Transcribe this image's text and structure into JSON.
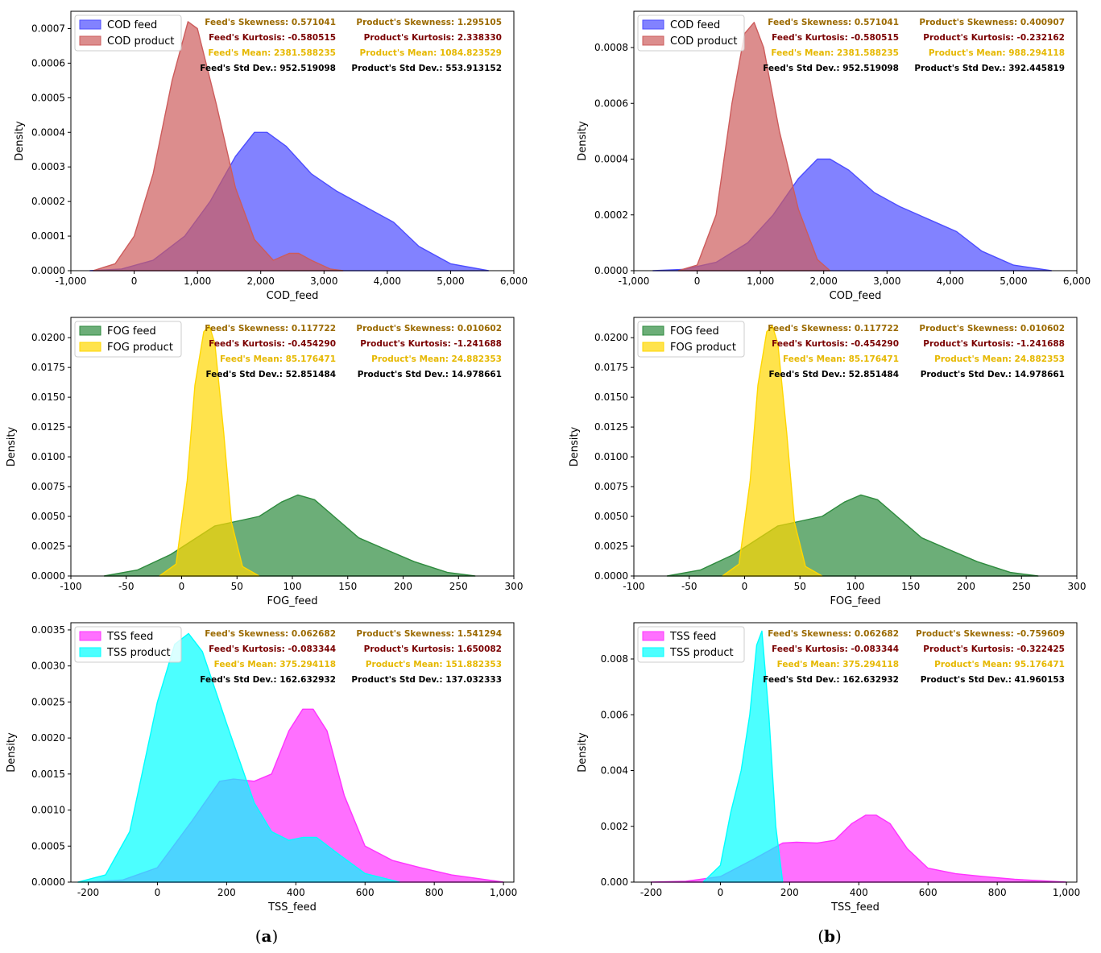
{
  "figure_labels": {
    "a_open": "(",
    "a_letter": "a",
    "a_close": ")",
    "b_open": "(",
    "b_letter": "b",
    "b_close": ")"
  },
  "colors": {
    "cod_feed": "#4d4dff",
    "cod_product": "#cd5c5c",
    "fog_feed": "#2e8b3e",
    "fog_product": "#ffd700",
    "tss_feed": "#ff33ff",
    "tss_product": "#00ffff",
    "stat_skew": "#9b6a00",
    "stat_kurt": "#7a0000",
    "stat_mean": "#e6b800",
    "stat_std": "#000000"
  },
  "chart_data": [
    {
      "id": "cod_a",
      "type": "area",
      "xlabel": "COD_feed",
      "ylabel": "Density",
      "xlim": [
        -1000,
        6000
      ],
      "ylim": [
        0,
        0.00075
      ],
      "xticks": [
        -1000,
        0,
        1000,
        2000,
        3000,
        4000,
        5000,
        6000
      ],
      "xticklabels": [
        "-1,000",
        "0",
        "1,000",
        "2,000",
        "3,000",
        "4,000",
        "5,000",
        "6,000"
      ],
      "yticks": [
        0,
        0.0001,
        0.0002,
        0.0003,
        0.0004,
        0.0005,
        0.0006,
        0.0007
      ],
      "yticklabels": [
        "0.0000",
        "0.0001",
        "0.0002",
        "0.0003",
        "0.0004",
        "0.0005",
        "0.0006",
        "0.0007"
      ],
      "legend": [
        "COD feed",
        "COD product"
      ],
      "stats": [
        "Feed's Skewness: 0.571041",
        "Product's Skewness: 1.295105",
        "Feed's Kurtosis: -0.580515",
        "Product's Kurtosis: 2.338330",
        "Feed's Mean: 2381.588235",
        "Product's Mean: 1084.823529",
        "Feed's Std Dev.: 952.519098",
        "Product's Std Dev.: 553.913152"
      ],
      "series": [
        {
          "name": "COD feed",
          "color": "cod_feed",
          "x": [
            -700,
            -200,
            300,
            800,
            1200,
            1600,
            1900,
            2100,
            2400,
            2800,
            3200,
            3700,
            4100,
            4500,
            5000,
            5600
          ],
          "y": [
            0,
            5e-06,
            3e-05,
            0.0001,
            0.0002,
            0.00033,
            0.0004,
            0.0004,
            0.00036,
            0.00028,
            0.00023,
            0.00018,
            0.00014,
            7e-05,
            2e-05,
            0
          ]
        },
        {
          "name": "COD product",
          "color": "cod_product",
          "x": [
            -650,
            -300,
            0,
            300,
            600,
            850,
            1000,
            1300,
            1600,
            1900,
            2200,
            2450,
            2600,
            2800,
            3100,
            3300
          ],
          "y": [
            0,
            2e-05,
            0.0001,
            0.00028,
            0.00055,
            0.00072,
            0.0007,
            0.00048,
            0.00024,
            9e-05,
            3e-05,
            5e-05,
            5e-05,
            3e-05,
            5e-06,
            0
          ]
        }
      ]
    },
    {
      "id": "cod_b",
      "type": "area",
      "xlabel": "COD_feed",
      "ylabel": "Density",
      "xlim": [
        -1000,
        6000
      ],
      "ylim": [
        0,
        0.00093
      ],
      "xticks": [
        -1000,
        0,
        1000,
        2000,
        3000,
        4000,
        5000,
        6000
      ],
      "xticklabels": [
        "-1,000",
        "0",
        "1,000",
        "2,000",
        "3,000",
        "4,000",
        "5,000",
        "6,000"
      ],
      "yticks": [
        0,
        0.0002,
        0.0004,
        0.0006,
        0.0008
      ],
      "yticklabels": [
        "0.0000",
        "0.0002",
        "0.0004",
        "0.0006",
        "0.0008"
      ],
      "legend": [
        "COD feed",
        "COD product"
      ],
      "stats": [
        "Feed's Skewness: 0.571041",
        "Product's Skewness: 0.400907",
        "Feed's Kurtosis: -0.580515",
        "Product's Kurtosis: -0.232162",
        "Feed's Mean: 2381.588235",
        "Product's Mean: 988.294118",
        "Feed's Std Dev.: 952.519098",
        "Product's Std Dev.: 392.445819"
      ],
      "series": [
        {
          "name": "COD feed",
          "color": "cod_feed",
          "x": [
            -700,
            -200,
            300,
            800,
            1200,
            1600,
            1900,
            2100,
            2400,
            2800,
            3200,
            3700,
            4100,
            4500,
            5000,
            5600
          ],
          "y": [
            0,
            5e-06,
            3e-05,
            0.0001,
            0.0002,
            0.00033,
            0.0004,
            0.0004,
            0.00036,
            0.00028,
            0.00023,
            0.00018,
            0.00014,
            7e-05,
            2e-05,
            0
          ]
        },
        {
          "name": "COD product",
          "color": "cod_product",
          "x": [
            -300,
            0,
            300,
            550,
            750,
            900,
            1050,
            1300,
            1600,
            1900,
            2100
          ],
          "y": [
            0,
            2e-05,
            0.0002,
            0.0006,
            0.00085,
            0.00089,
            0.0008,
            0.0005,
            0.00022,
            4e-05,
            0
          ]
        }
      ]
    },
    {
      "id": "fog_a",
      "type": "area",
      "xlabel": "FOG_feed",
      "ylabel": "Density",
      "xlim": [
        -100,
        300
      ],
      "ylim": [
        0,
        0.0217
      ],
      "xticks": [
        -100,
        -50,
        0,
        50,
        100,
        150,
        200,
        250,
        300
      ],
      "xticklabels": [
        "-100",
        "-50",
        "0",
        "50",
        "100",
        "150",
        "200",
        "250",
        "300"
      ],
      "yticks": [
        0,
        0.0025,
        0.005,
        0.0075,
        0.01,
        0.0125,
        0.015,
        0.0175,
        0.02
      ],
      "yticklabels": [
        "0.0000",
        "0.0025",
        "0.0050",
        "0.0075",
        "0.0100",
        "0.0125",
        "0.0150",
        "0.0175",
        "0.0200"
      ],
      "legend": [
        "FOG feed",
        "FOG product"
      ],
      "stats": [
        "Feed's Skewness: 0.117722",
        "Product's Skewness: 0.010602",
        "Feed's Kurtosis: -0.454290",
        "Product's Kurtosis: -1.241688",
        "Feed's Mean: 85.176471",
        "Product's Mean: 24.882353",
        "Feed's Std Dev.: 52.851484",
        "Product's Std Dev.: 14.978661"
      ],
      "series": [
        {
          "name": "FOG feed",
          "color": "fog_feed",
          "x": [
            -70,
            -40,
            -10,
            10,
            30,
            50,
            70,
            90,
            105,
            120,
            140,
            160,
            185,
            210,
            240,
            265
          ],
          "y": [
            0,
            0.0005,
            0.0018,
            0.003,
            0.0042,
            0.0046,
            0.005,
            0.0062,
            0.0068,
            0.0064,
            0.0048,
            0.0032,
            0.0022,
            0.0012,
            0.0003,
            0
          ]
        },
        {
          "name": "FOG product",
          "color": "fog_product",
          "x": [
            -20,
            -5,
            5,
            12,
            20,
            25,
            30,
            38,
            45,
            55,
            70
          ],
          "y": [
            0,
            0.001,
            0.008,
            0.016,
            0.0205,
            0.021,
            0.0195,
            0.012,
            0.0045,
            0.0008,
            0
          ]
        }
      ]
    },
    {
      "id": "fog_b",
      "type": "area",
      "xlabel": "FOG_feed",
      "ylabel": "Density",
      "xlim": [
        -100,
        300
      ],
      "ylim": [
        0,
        0.0217
      ],
      "xticks": [
        -100,
        -50,
        0,
        50,
        100,
        150,
        200,
        250,
        300
      ],
      "xticklabels": [
        "-100",
        "-50",
        "0",
        "50",
        "100",
        "150",
        "200",
        "250",
        "300"
      ],
      "yticks": [
        0,
        0.0025,
        0.005,
        0.0075,
        0.01,
        0.0125,
        0.015,
        0.0175,
        0.02
      ],
      "yticklabels": [
        "0.0000",
        "0.0025",
        "0.0050",
        "0.0075",
        "0.0100",
        "0.0125",
        "0.0150",
        "0.0175",
        "0.0200"
      ],
      "legend": [
        "FOG feed",
        "FOG product"
      ],
      "stats": [
        "Feed's Skewness: 0.117722",
        "Product's Skewness: 0.010602",
        "Feed's Kurtosis: -0.454290",
        "Product's Kurtosis: -1.241688",
        "Feed's Mean: 85.176471",
        "Product's Mean: 24.882353",
        "Feed's Std Dev.: 52.851484",
        "Product's Std Dev.: 14.978661"
      ],
      "series": [
        {
          "name": "FOG feed",
          "color": "fog_feed",
          "x": [
            -70,
            -40,
            -10,
            10,
            30,
            50,
            70,
            90,
            105,
            120,
            140,
            160,
            185,
            210,
            240,
            265
          ],
          "y": [
            0,
            0.0005,
            0.0018,
            0.003,
            0.0042,
            0.0046,
            0.005,
            0.0062,
            0.0068,
            0.0064,
            0.0048,
            0.0032,
            0.0022,
            0.0012,
            0.0003,
            0
          ]
        },
        {
          "name": "FOG product",
          "color": "fog_product",
          "x": [
            -20,
            -5,
            5,
            12,
            20,
            25,
            30,
            38,
            45,
            55,
            70
          ],
          "y": [
            0,
            0.001,
            0.008,
            0.016,
            0.0205,
            0.021,
            0.0195,
            0.012,
            0.0045,
            0.0008,
            0
          ]
        }
      ]
    },
    {
      "id": "tss_a",
      "type": "area",
      "xlabel": "TSS_feed",
      "ylabel": "Density",
      "xlim": [
        -250,
        1030
      ],
      "ylim": [
        0,
        0.0036
      ],
      "xticks": [
        -200,
        0,
        200,
        400,
        600,
        800,
        1000
      ],
      "xticklabels": [
        "-200",
        "0",
        "200",
        "400",
        "600",
        "800",
        "1,000"
      ],
      "yticks": [
        0,
        0.0005,
        0.001,
        0.0015,
        0.002,
        0.0025,
        0.003,
        0.0035
      ],
      "yticklabels": [
        "0.0000",
        "0.0005",
        "0.0010",
        "0.0015",
        "0.0020",
        "0.0025",
        "0.0030",
        "0.0035"
      ],
      "legend": [
        "TSS feed",
        "TSS product"
      ],
      "stats": [
        "Feed's Skewness: 0.062682",
        "Product's Skewness: 1.541294",
        "Feed's Kurtosis: -0.083344",
        "Product's Kurtosis: 1.650082",
        "Feed's Mean: 375.294118",
        "Product's Mean: 151.882353",
        "Feed's Std Dev.: 162.632932",
        "Product's Std Dev.: 137.032333"
      ],
      "series": [
        {
          "name": "TSS feed",
          "color": "tss_feed",
          "x": [
            -200,
            -100,
            0,
            100,
            180,
            220,
            280,
            330,
            380,
            420,
            450,
            490,
            540,
            600,
            680,
            760,
            850,
            1000
          ],
          "y": [
            0,
            3e-05,
            0.0002,
            0.00085,
            0.0014,
            0.00143,
            0.0014,
            0.0015,
            0.0021,
            0.0024,
            0.0024,
            0.0021,
            0.0012,
            0.0005,
            0.0003,
            0.0002,
            0.0001,
            0
          ]
        },
        {
          "name": "TSS product",
          "color": "tss_product",
          "x": [
            -230,
            -150,
            -80,
            0,
            50,
            90,
            130,
            200,
            280,
            330,
            380,
            420,
            460,
            520,
            600,
            700
          ],
          "y": [
            0,
            0.0001,
            0.0007,
            0.0025,
            0.0033,
            0.00345,
            0.0032,
            0.0022,
            0.0011,
            0.0007,
            0.00058,
            0.00062,
            0.00062,
            0.0004,
            0.00012,
            0
          ]
        }
      ]
    },
    {
      "id": "tss_b",
      "type": "area",
      "xlabel": "TSS_feed",
      "ylabel": "Density",
      "xlim": [
        -250,
        1030
      ],
      "ylim": [
        0,
        0.0093
      ],
      "xticks": [
        -200,
        0,
        200,
        400,
        600,
        800,
        1000
      ],
      "xticklabels": [
        "-200",
        "0",
        "200",
        "400",
        "600",
        "800",
        "1,000"
      ],
      "yticks": [
        0,
        0.002,
        0.004,
        0.006,
        0.008
      ],
      "yticklabels": [
        "0.000",
        "0.002",
        "0.004",
        "0.006",
        "0.008"
      ],
      "legend": [
        "TSS feed",
        "TSS product"
      ],
      "stats": [
        "Feed's Skewness: 0.062682",
        "Product's Skewness: -0.759609",
        "Feed's Kurtosis: -0.083344",
        "Product's Kurtosis: -0.322425",
        "Feed's Mean: 375.294118",
        "Product's Mean: 95.176471",
        "Feed's Std Dev.: 162.632932",
        "Product's Std Dev.: 41.960153"
      ],
      "series": [
        {
          "name": "TSS feed",
          "color": "tss_feed",
          "x": [
            -200,
            -100,
            0,
            100,
            180,
            220,
            280,
            330,
            380,
            420,
            450,
            490,
            540,
            600,
            680,
            760,
            850,
            1000
          ],
          "y": [
            0,
            3e-05,
            0.0002,
            0.00085,
            0.0014,
            0.00143,
            0.0014,
            0.0015,
            0.0021,
            0.0024,
            0.0024,
            0.0021,
            0.0012,
            0.0005,
            0.0003,
            0.0002,
            0.0001,
            0
          ]
        },
        {
          "name": "TSS product",
          "color": "tss_product",
          "x": [
            -50,
            0,
            30,
            60,
            85,
            105,
            120,
            140,
            160,
            180
          ],
          "y": [
            0,
            0.0006,
            0.0025,
            0.004,
            0.006,
            0.0085,
            0.009,
            0.006,
            0.002,
            0
          ]
        }
      ]
    }
  ]
}
